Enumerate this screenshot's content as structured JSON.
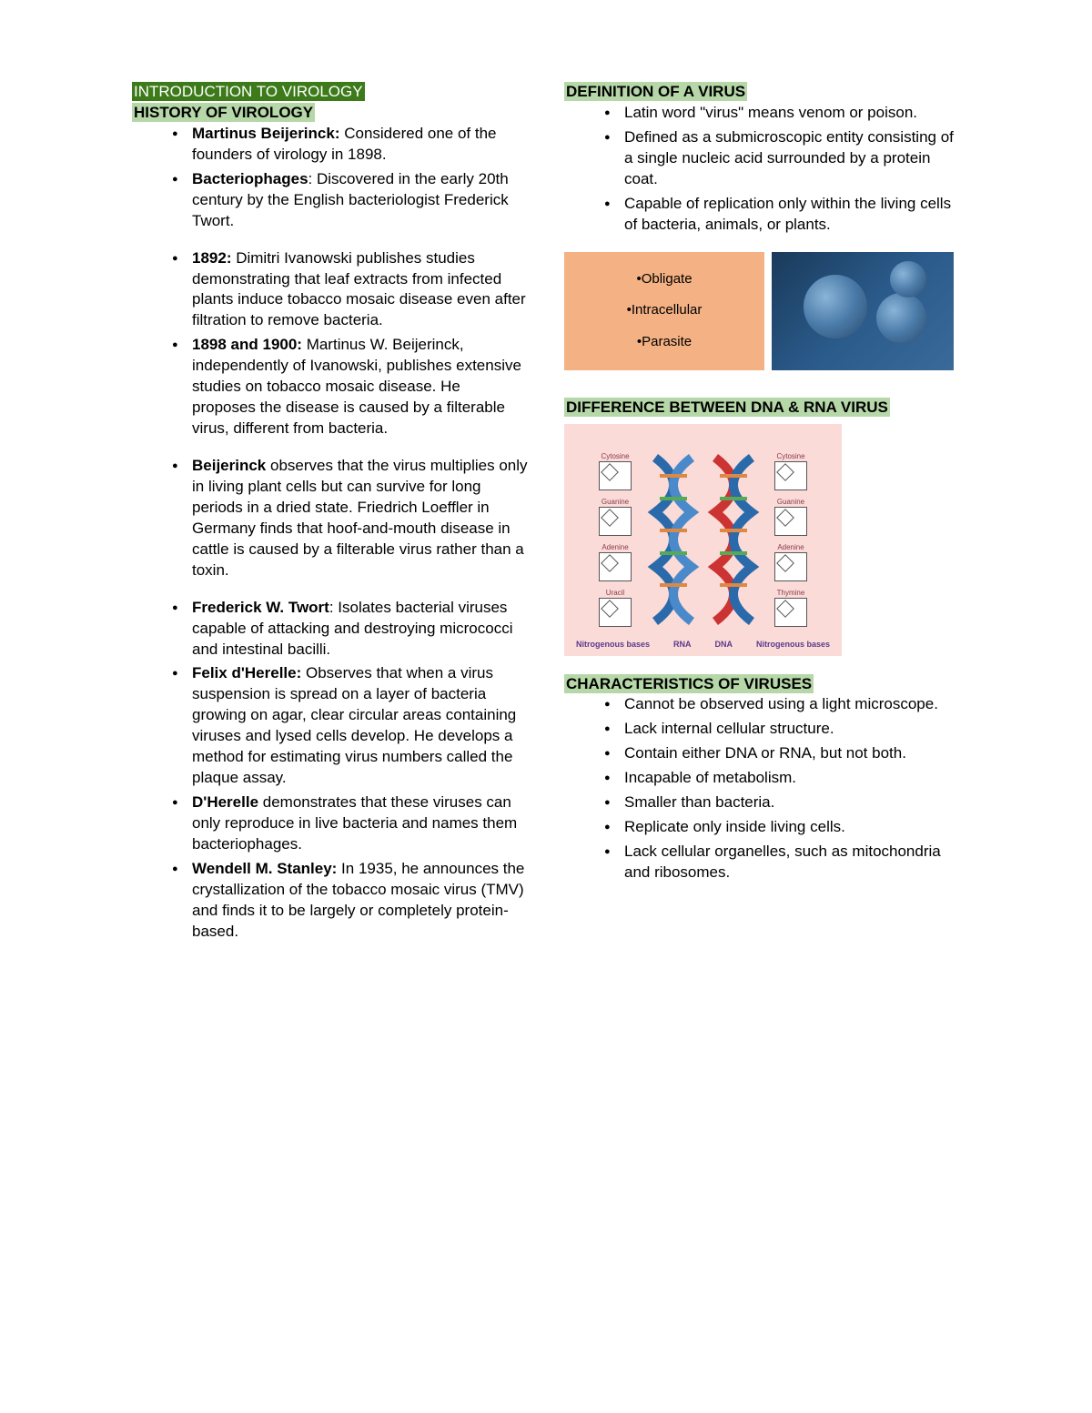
{
  "left": {
    "title1": "INTRODUCTION TO VIROLOGY",
    "title2": "HISTORY OF VIROLOGY",
    "items": [
      {
        "bold": "Martinus Beijerinck:",
        "text": " Considered one of the founders of virology in 1898."
      },
      {
        "bold": "Bacteriophages",
        "text": ": Discovered in the early 20th century by the English bacteriologist Frederick Twort."
      },
      {
        "bold": "1892:",
        "text": " Dimitri Ivanowski publishes studies demonstrating that leaf extracts from infected plants induce tobacco mosaic disease even after filtration to remove bacteria.",
        "gap": true
      },
      {
        "bold": "1898 and 1900:",
        "text": " Martinus W. Beijerinck, independently of Ivanowski, publishes extensive studies on tobacco mosaic disease. He proposes the disease is caused by a filterable virus, different from bacteria."
      },
      {
        "bold": "Beijerinck",
        "text": " observes that the virus multiplies only in living plant cells but can survive for long periods in a dried state. Friedrich Loeffler in Germany finds that hoof-and-mouth disease in cattle is caused by a filterable virus rather than a toxin.",
        "gap": true
      },
      {
        "bold": "Frederick W. Twort",
        "text": ": Isolates bacterial viruses capable of attacking and destroying micrococci and intestinal bacilli.",
        "gap": true
      },
      {
        "bold": "Felix d'Herelle:",
        "text": " Observes that when a virus suspension is spread on a layer of bacteria growing on agar, clear circular areas containing viruses and lysed cells develop. He develops a method for estimating virus numbers called the plaque assay."
      },
      {
        "bold": "D'Herelle",
        "text": " demonstrates that these viruses can only reproduce in live bacteria and names them bacteriophages."
      },
      {
        "bold": "Wendell M. Stanley:",
        "text": " In 1935, he announces the crystallization of the tobacco mosaic virus (TMV) and finds it to be largely or completely protein-based."
      }
    ]
  },
  "right": {
    "def_title": "DEFINITION OF A VIRUS",
    "def_items": [
      "Latin word \"virus\" means venom or poison.",
      "Defined as a submicroscopic entity consisting of a single nucleic acid surrounded by a protein coat.",
      "Capable of replication only within the living cells of bacteria, animals, or plants."
    ],
    "orange_box": {
      "line1": "•Obligate",
      "line2": "•Intracellular",
      "line3": "•Parasite"
    },
    "diff_title": "DIFFERENCE BETWEEN DNA & RNA VIRUS",
    "dna_labels": {
      "col1": "Nitrogenous bases",
      "col2": "RNA",
      "col3": "DNA",
      "col4": "Nitrogenous bases"
    },
    "chem_labels": [
      "Cytosine",
      "Guanine",
      "Adenine",
      "Uracil"
    ],
    "chem_labels_r": [
      "Cytosine",
      "Guanine",
      "Adenine",
      "Thymine"
    ],
    "char_title": "CHARACTERISTICS OF VIRUSES",
    "char_items": [
      "Cannot be observed using a light microscope.",
      "Lack internal cellular structure.",
      "Contain either DNA or RNA, but not both.",
      "Incapable of metabolism.",
      "Smaller than bacteria.",
      "Replicate only inside living cells.",
      "Lack cellular organelles, such as mitochondria and ribosomes."
    ]
  },
  "colors": {
    "dark_green": "#3c7a1a",
    "light_green": "#b6d7a8",
    "orange": "#f4b183",
    "text": "#000000",
    "bg": "#ffffff"
  }
}
